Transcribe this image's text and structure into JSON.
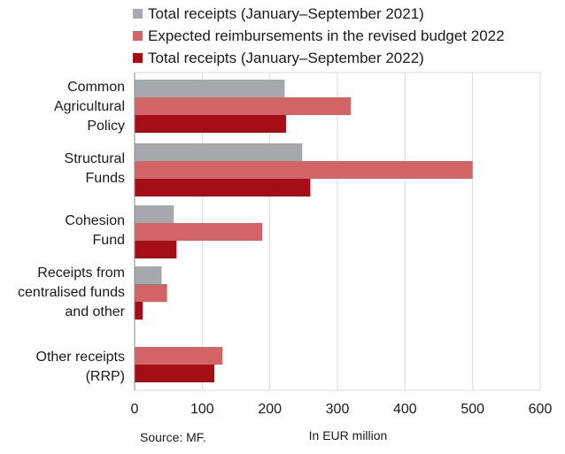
{
  "colors": {
    "series_2021": "#a5a9ae",
    "series_expected_2022": "#d26466",
    "series_2022": "#a50d17",
    "grid": "#d9d9d9",
    "axis": "#888888"
  },
  "source": "Source: MF.",
  "chart_data": {
    "type": "bar",
    "orientation": "horizontal",
    "categories": [
      [
        "Common",
        "Agricultural",
        "Policy"
      ],
      [
        "Structural",
        "Funds"
      ],
      [
        "Cohesion",
        "Fund"
      ],
      [
        "Receipts from",
        "centralised funds",
        "and other"
      ],
      [
        "Other receipts",
        "(RRP)"
      ]
    ],
    "series": [
      {
        "name": "Total receipts (January–September 2021)",
        "color": "#a5a9ae",
        "values": [
          222,
          248,
          58,
          40,
          null
        ]
      },
      {
        "name": "Expected reimbursements in the revised budget 2022",
        "color": "#d26466",
        "values": [
          320,
          500,
          189,
          48,
          130
        ]
      },
      {
        "name": "Total receipts (January–September 2022)",
        "color": "#a50d17",
        "values": [
          224,
          260,
          62,
          12,
          118
        ]
      }
    ],
    "xlabel": "In EUR million",
    "xlim": [
      0,
      600
    ],
    "xticks": [
      0,
      100,
      200,
      300,
      400,
      500,
      600
    ],
    "grid": true,
    "legend_position": "top"
  }
}
